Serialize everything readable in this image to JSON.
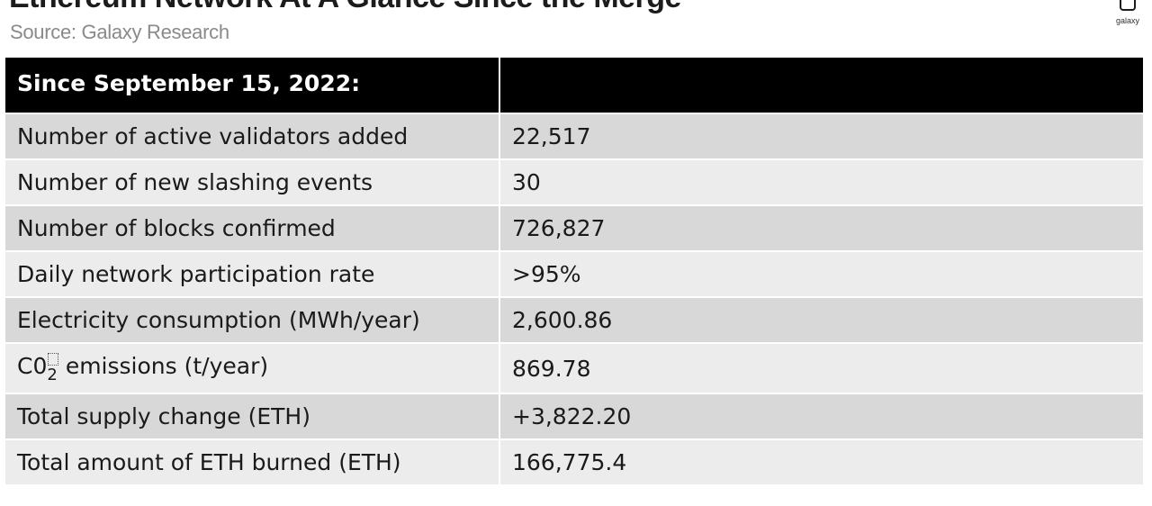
{
  "header": {
    "title": "Ethereum Network At A Glance Since the Merge",
    "source": "Source: Galaxy Research",
    "logo_text": "galaxy"
  },
  "table": {
    "header_label": "Since September 15, 2022:",
    "header_value": "",
    "rows": [
      {
        "label": "Number of active validators added",
        "value": "22,517"
      },
      {
        "label": "Number of new slashing events",
        "value": "30"
      },
      {
        "label": "Number of blocks confirmed",
        "value": "726,827"
      },
      {
        "label": "Daily network participation rate",
        "value": ">95%"
      },
      {
        "label": "Electricity consumption (MWh/year)",
        "value": "2,600.86"
      },
      {
        "label_prefix": "C0",
        "label_sub": "2",
        "label_suffix": "emissions (t/year)",
        "value": "869.78"
      },
      {
        "label": "Total supply change (ETH)",
        "value": "+3,822.20"
      },
      {
        "label": "Total amount of ETH burned (ETH)",
        "value": "166,775.4"
      }
    ]
  },
  "colors": {
    "header_bg": "#000000",
    "row_dark": "#d8d8d8",
    "row_light": "#ececec",
    "source_text": "#8a8a8a"
  }
}
